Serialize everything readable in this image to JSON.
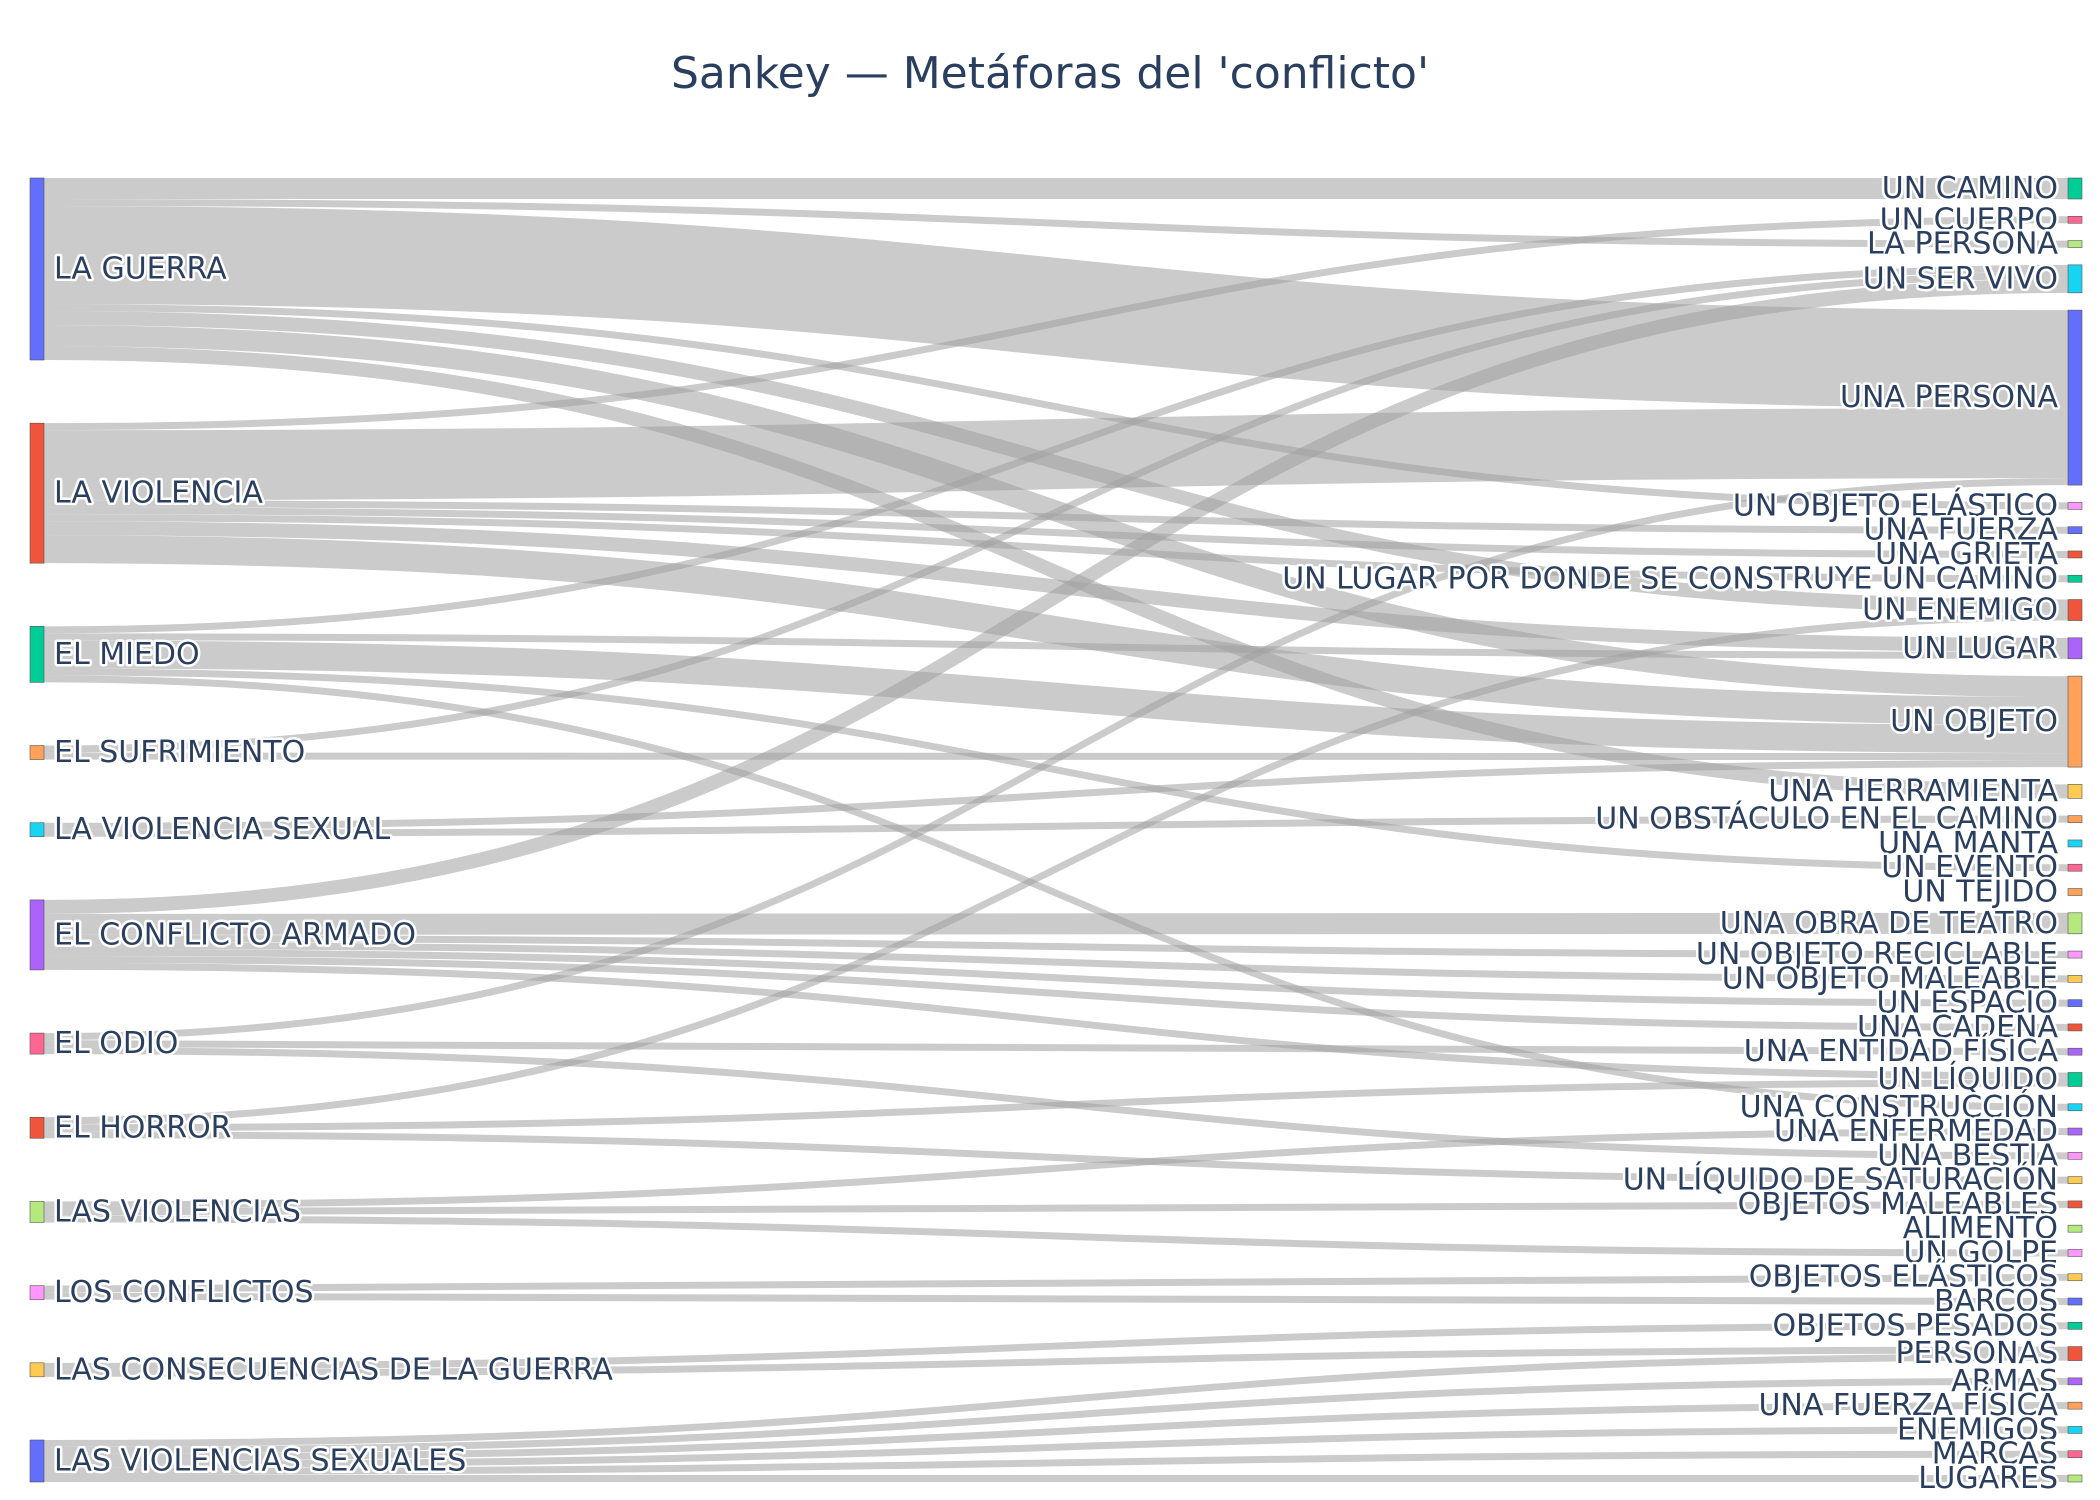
{
  "title": "Sankey — Metáforas del 'conflicto'",
  "chart_data": {
    "type": "sankey",
    "sources": [
      {
        "name": "LA GUERRA",
        "color": "#636efa"
      },
      {
        "name": "LA VIOLENCIA",
        "color": "#ef553b"
      },
      {
        "name": "EL MIEDO",
        "color": "#00cc96"
      },
      {
        "name": "EL SUFRIMIENTO",
        "color": "#ffa15a"
      },
      {
        "name": "LA VIOLENCIA SEXUAL",
        "color": "#19d3f3"
      },
      {
        "name": "EL CONFLICTO ARMADO",
        "color": "#ab63fa"
      },
      {
        "name": "EL ODIO",
        "color": "#ff6692"
      },
      {
        "name": "EL HORROR",
        "color": "#ef553b"
      },
      {
        "name": "LAS VIOLENCIAS",
        "color": "#b6e880"
      },
      {
        "name": "LOS CONFLICTOS",
        "color": "#ff97ff"
      },
      {
        "name": "LAS CONSECUENCIAS DE LA GUERRA",
        "color": "#fecb52"
      },
      {
        "name": "LAS VIOLENCIAS SEXUALES",
        "color": "#636efa"
      }
    ],
    "targets": [
      {
        "name": "UN CAMINO",
        "color": "#00cc96"
      },
      {
        "name": "UN CUERPO",
        "color": "#ff6692"
      },
      {
        "name": "LA PERSONA",
        "color": "#b6e880"
      },
      {
        "name": "UN SER VIVO",
        "color": "#19d3f3"
      },
      {
        "name": "UNA PERSONA",
        "color": "#636efa"
      },
      {
        "name": "UN OBJETO ELÁSTICO",
        "color": "#ff97ff"
      },
      {
        "name": "UNA FUERZA",
        "color": "#636efa"
      },
      {
        "name": "UNA GRIETA",
        "color": "#ef553b"
      },
      {
        "name": "UN LUGAR POR DONDE SE CONSTRUYE UN CAMINO",
        "color": "#00cc96"
      },
      {
        "name": "UN ENEMIGO",
        "color": "#ef553b"
      },
      {
        "name": "UN LUGAR",
        "color": "#ab63fa"
      },
      {
        "name": "UN OBJETO",
        "color": "#ffa15a"
      },
      {
        "name": "UNA HERRAMIENTA",
        "color": "#fecb52"
      },
      {
        "name": "UN OBSTÁCULO EN EL CAMINO",
        "color": "#ffa15a"
      },
      {
        "name": "UNA MANTA",
        "color": "#19d3f3"
      },
      {
        "name": "UN EVENTO",
        "color": "#ff6692"
      },
      {
        "name": "UN TEJIDO",
        "color": "#ffa15a"
      },
      {
        "name": "UNA OBRA DE TEATRO",
        "color": "#b6e880"
      },
      {
        "name": "UN OBJETO RECICLABLE",
        "color": "#ff97ff"
      },
      {
        "name": "UN OBJETO MALEABLE",
        "color": "#fecb52"
      },
      {
        "name": "UN ESPACIO",
        "color": "#636efa"
      },
      {
        "name": "UNA CADENA",
        "color": "#ef553b"
      },
      {
        "name": "UNA ENTIDAD FÍSICA",
        "color": "#ab63fa"
      },
      {
        "name": "UN LÍQUIDO",
        "color": "#00cc96"
      },
      {
        "name": "UNA CONSTRUCCIÓN",
        "color": "#19d3f3"
      },
      {
        "name": "UNA ENFERMEDAD",
        "color": "#ab63fa"
      },
      {
        "name": "UNA BESTIA",
        "color": "#ff97ff"
      },
      {
        "name": "UN LÍQUIDO DE SATURACIÓN",
        "color": "#fecb52"
      },
      {
        "name": "OBJETOS MALEABLES",
        "color": "#ef553b"
      },
      {
        "name": "ALIMENTO",
        "color": "#b6e880"
      },
      {
        "name": "UN GOLPE",
        "color": "#ff97ff"
      },
      {
        "name": "OBJETOS ELÁSTICOS",
        "color": "#fecb52"
      },
      {
        "name": "BARCOS",
        "color": "#636efa"
      },
      {
        "name": "OBJETOS PESADOS",
        "color": "#00cc96"
      },
      {
        "name": "PERSONAS",
        "color": "#ef553b"
      },
      {
        "name": "ARMAS",
        "color": "#ab63fa"
      },
      {
        "name": "UNA FUERZA FÍSICA",
        "color": "#ffa15a"
      },
      {
        "name": "ENEMIGOS",
        "color": "#19d3f3"
      },
      {
        "name": "MARCAS",
        "color": "#ff6692"
      },
      {
        "name": "LUGARES",
        "color": "#b6e880"
      }
    ],
    "links": [
      {
        "source": "LA GUERRA",
        "target": "UN CAMINO",
        "value": 3
      },
      {
        "source": "LA GUERRA",
        "target": "LA PERSONA",
        "value": 1
      },
      {
        "source": "LA GUERRA",
        "target": "UNA PERSONA",
        "value": 14
      },
      {
        "source": "LA GUERRA",
        "target": "UN OBJETO ELÁSTICO",
        "value": 1
      },
      {
        "source": "LA GUERRA",
        "target": "UN ENEMIGO",
        "value": 2
      },
      {
        "source": "LA GUERRA",
        "target": "UN OBJETO",
        "value": 3
      },
      {
        "source": "LA GUERRA",
        "target": "UNA HERRAMIENTA",
        "value": 2
      },
      {
        "source": "LA VIOLENCIA",
        "target": "UN CUERPO",
        "value": 1
      },
      {
        "source": "LA VIOLENCIA",
        "target": "UNA PERSONA",
        "value": 10
      },
      {
        "source": "LA VIOLENCIA",
        "target": "UNA FUERZA",
        "value": 1
      },
      {
        "source": "LA VIOLENCIA",
        "target": "UNA GRIETA",
        "value": 1
      },
      {
        "source": "LA VIOLENCIA",
        "target": "UN LUGAR POR DONDE SE CONSTRUYE UN CAMINO",
        "value": 1
      },
      {
        "source": "LA VIOLENCIA",
        "target": "UN LUGAR",
        "value": 2
      },
      {
        "source": "LA VIOLENCIA",
        "target": "UN OBJETO",
        "value": 4
      },
      {
        "source": "EL MIEDO",
        "target": "UN SER VIVO",
        "value": 1
      },
      {
        "source": "EL MIEDO",
        "target": "UN LUGAR",
        "value": 1
      },
      {
        "source": "EL MIEDO",
        "target": "UN OBJETO",
        "value": 4
      },
      {
        "source": "EL MIEDO",
        "target": "UN EVENTO",
        "value": 1
      },
      {
        "source": "EL MIEDO",
        "target": "UNA CONSTRUCCIÓN",
        "value": 1
      },
      {
        "source": "EL SUFRIMIENTO",
        "target": "UN SER VIVO",
        "value": 1
      },
      {
        "source": "EL SUFRIMIENTO",
        "target": "UN OBJETO",
        "value": 1
      },
      {
        "source": "LA VIOLENCIA SEXUAL",
        "target": "UN OBJETO",
        "value": 1
      },
      {
        "source": "LA VIOLENCIA SEXUAL",
        "target": "UN OBSTÁCULO EN EL CAMINO",
        "value": 1
      },
      {
        "source": "EL CONFLICTO ARMADO",
        "target": "UN SER VIVO",
        "value": 2
      },
      {
        "source": "EL CONFLICTO ARMADO",
        "target": "UNA OBRA DE TEATRO",
        "value": 3
      },
      {
        "source": "EL CONFLICTO ARMADO",
        "target": "UN OBJETO RECICLABLE",
        "value": 1
      },
      {
        "source": "EL CONFLICTO ARMADO",
        "target": "UN OBJETO MALEABLE",
        "value": 1
      },
      {
        "source": "EL CONFLICTO ARMADO",
        "target": "UN ESPACIO",
        "value": 1
      },
      {
        "source": "EL CONFLICTO ARMADO",
        "target": "UNA CADENA",
        "value": 1
      },
      {
        "source": "EL CONFLICTO ARMADO",
        "target": "UN LÍQUIDO",
        "value": 1
      },
      {
        "source": "EL ODIO",
        "target": "UNA PERSONA",
        "value": 1
      },
      {
        "source": "EL ODIO",
        "target": "UNA ENTIDAD FÍSICA",
        "value": 1
      },
      {
        "source": "EL ODIO",
        "target": "UNA BESTIA",
        "value": 1
      },
      {
        "source": "EL HORROR",
        "target": "UN ENEMIGO",
        "value": 1
      },
      {
        "source": "EL HORROR",
        "target": "UN LÍQUIDO",
        "value": 1
      },
      {
        "source": "EL HORROR",
        "target": "UN LÍQUIDO DE SATURACIÓN",
        "value": 1
      },
      {
        "source": "LAS VIOLENCIAS",
        "target": "UNA ENFERMEDAD",
        "value": 1
      },
      {
        "source": "LAS VIOLENCIAS",
        "target": "OBJETOS MALEABLES",
        "value": 1
      },
      {
        "source": "LAS VIOLENCIAS",
        "target": "UN GOLPE",
        "value": 1
      },
      {
        "source": "LOS CONFLICTOS",
        "target": "OBJETOS ELÁSTICOS",
        "value": 1
      },
      {
        "source": "LOS CONFLICTOS",
        "target": "BARCOS",
        "value": 1
      },
      {
        "source": "LAS CONSECUENCIAS DE LA GUERRA",
        "target": "OBJETOS PESADOS",
        "value": 1
      },
      {
        "source": "LAS CONSECUENCIAS DE LA GUERRA",
        "target": "PERSONAS",
        "value": 1
      },
      {
        "source": "LAS VIOLENCIAS SEXUALES",
        "target": "PERSONAS",
        "value": 1
      },
      {
        "source": "LAS VIOLENCIAS SEXUALES",
        "target": "ARMAS",
        "value": 1
      },
      {
        "source": "LAS VIOLENCIAS SEXUALES",
        "target": "UNA FUERZA FÍSICA",
        "value": 1
      },
      {
        "source": "LAS VIOLENCIAS SEXUALES",
        "target": "ENEMIGOS",
        "value": 1
      },
      {
        "source": "LAS VIOLENCIAS SEXUALES",
        "target": "MARCAS",
        "value": 1
      },
      {
        "source": "LAS VIOLENCIAS SEXUALES",
        "target": "LUGARES",
        "value": 1
      }
    ]
  }
}
